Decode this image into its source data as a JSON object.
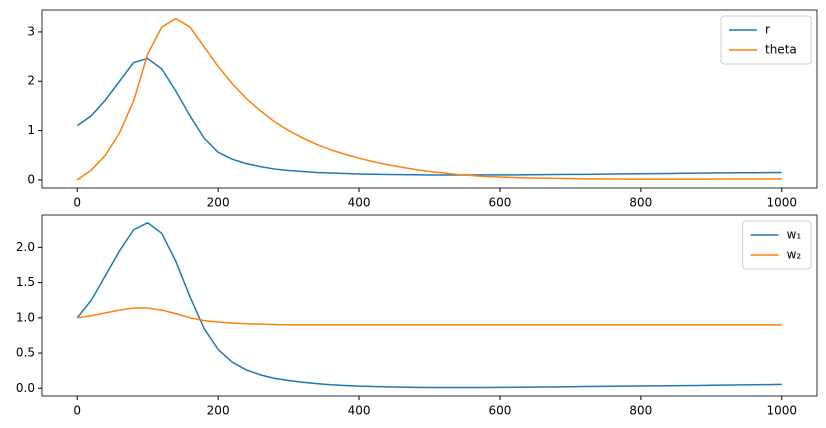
{
  "chart_data": [
    {
      "type": "line",
      "legend": "upper right",
      "x": [
        0,
        20,
        40,
        60,
        80,
        100,
        120,
        140,
        160,
        180,
        200,
        220,
        240,
        260,
        280,
        300,
        320,
        340,
        360,
        380,
        400,
        420,
        440,
        460,
        480,
        500,
        520,
        540,
        560,
        580,
        600,
        620,
        640,
        660,
        680,
        700,
        720,
        740,
        760,
        780,
        800,
        820,
        840,
        860,
        880,
        900,
        920,
        940,
        960,
        980,
        1000
      ],
      "series": [
        {
          "name": "r",
          "color": "#1f77b4",
          "values": [
            1.1,
            1.3,
            1.62,
            2.0,
            2.38,
            2.46,
            2.25,
            1.8,
            1.3,
            0.85,
            0.56,
            0.42,
            0.33,
            0.27,
            0.22,
            0.19,
            0.17,
            0.15,
            0.14,
            0.13,
            0.12,
            0.115,
            0.11,
            0.108,
            0.105,
            0.1,
            0.1,
            0.1,
            0.1,
            0.101,
            0.102,
            0.103,
            0.105,
            0.107,
            0.109,
            0.111,
            0.113,
            0.116,
            0.119,
            0.122,
            0.125,
            0.128,
            0.131,
            0.134,
            0.137,
            0.14,
            0.142,
            0.144,
            0.146,
            0.148,
            0.15
          ]
        },
        {
          "name": "theta",
          "color": "#ff7f0e",
          "values": [
            0.0,
            0.2,
            0.5,
            0.95,
            1.6,
            2.55,
            3.1,
            3.27,
            3.1,
            2.7,
            2.3,
            1.95,
            1.65,
            1.4,
            1.18,
            1.0,
            0.85,
            0.72,
            0.61,
            0.52,
            0.44,
            0.37,
            0.31,
            0.26,
            0.21,
            0.17,
            0.14,
            0.11,
            0.09,
            0.07,
            0.06,
            0.05,
            0.04,
            0.035,
            0.03,
            0.025,
            0.022,
            0.02,
            0.018,
            0.017,
            0.016,
            0.016,
            0.016,
            0.016,
            0.017,
            0.017,
            0.018,
            0.018,
            0.019,
            0.019,
            0.02
          ]
        }
      ],
      "xlim": [
        -50,
        1050
      ],
      "xticks": [
        0,
        200,
        400,
        600,
        800,
        1000
      ],
      "ylim": [
        -0.164,
        3.444
      ],
      "yticks": [
        0,
        1,
        2,
        3
      ]
    },
    {
      "type": "line",
      "legend": "upper right",
      "x": [
        0,
        20,
        40,
        60,
        80,
        100,
        120,
        140,
        160,
        180,
        200,
        220,
        240,
        260,
        280,
        300,
        320,
        340,
        360,
        380,
        400,
        420,
        440,
        460,
        480,
        500,
        520,
        540,
        560,
        580,
        600,
        620,
        640,
        660,
        680,
        700,
        720,
        740,
        760,
        780,
        800,
        820,
        840,
        860,
        880,
        900,
        920,
        940,
        960,
        980,
        1000
      ],
      "series": [
        {
          "name": "w₁",
          "color": "#1f77b4",
          "values": [
            1.0,
            1.25,
            1.6,
            1.95,
            2.25,
            2.35,
            2.2,
            1.8,
            1.3,
            0.85,
            0.55,
            0.37,
            0.26,
            0.19,
            0.14,
            0.11,
            0.085,
            0.065,
            0.05,
            0.04,
            0.03,
            0.025,
            0.02,
            0.016,
            0.013,
            0.011,
            0.01,
            0.01,
            0.01,
            0.011,
            0.012,
            0.014,
            0.016,
            0.018,
            0.02,
            0.022,
            0.024,
            0.026,
            0.028,
            0.03,
            0.032,
            0.034,
            0.036,
            0.038,
            0.04,
            0.042,
            0.045,
            0.048,
            0.05,
            0.052,
            0.055
          ]
        },
        {
          "name": "w₂",
          "color": "#ff7f0e",
          "values": [
            1.0,
            1.03,
            1.07,
            1.11,
            1.14,
            1.14,
            1.11,
            1.06,
            1.0,
            0.96,
            0.94,
            0.925,
            0.915,
            0.91,
            0.905,
            0.9,
            0.9,
            0.9,
            0.9,
            0.9,
            0.9,
            0.9,
            0.9,
            0.9,
            0.9,
            0.9,
            0.9,
            0.9,
            0.9,
            0.9,
            0.9,
            0.9,
            0.9,
            0.9,
            0.9,
            0.9,
            0.9,
            0.9,
            0.9,
            0.9,
            0.9,
            0.9,
            0.9,
            0.9,
            0.9,
            0.9,
            0.9,
            0.9,
            0.9,
            0.9,
            0.9
          ]
        }
      ],
      "xlim": [
        -50,
        1050
      ],
      "xticks": [
        0,
        200,
        400,
        600,
        800,
        1000
      ],
      "ylim": [
        -0.11,
        2.46
      ],
      "yticks": [
        {
          "value": 0,
          "label": "0.0"
        },
        0.5,
        {
          "value": 1,
          "label": "1.0"
        },
        1.5,
        {
          "value": 2,
          "label": "2.0"
        }
      ]
    }
  ]
}
